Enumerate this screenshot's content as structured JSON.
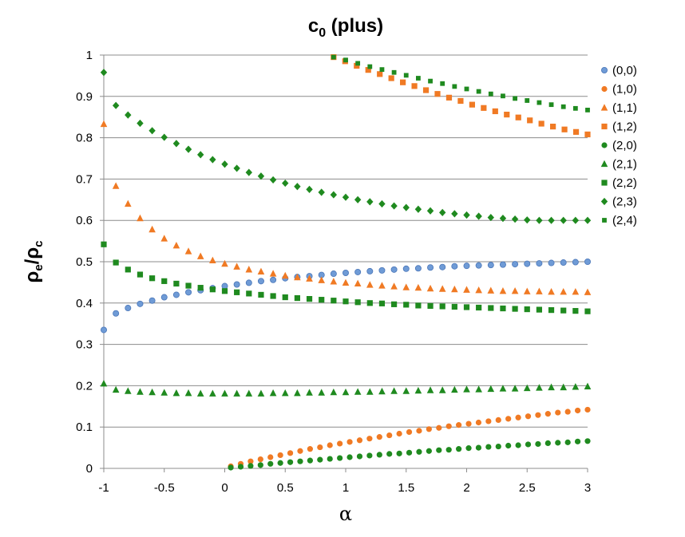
{
  "chart_data": {
    "type": "scatter",
    "title": "c",
    "title_sub": "0",
    "title_suffix": " (plus)",
    "xlabel": "α",
    "ylabel_main1": "ρ",
    "ylabel_sub1": "e",
    "ylabel_slash": "/ρ",
    "ylabel_sub2": "c",
    "xlim": [
      -1,
      3
    ],
    "ylim": [
      0,
      1
    ],
    "x_ticks": [
      -1,
      -0.5,
      0,
      0.5,
      1,
      1.5,
      2,
      2.5,
      3
    ],
    "x_tick_labels": [
      "-1",
      "-0.5",
      "0",
      "0.5",
      "1",
      "1.5",
      "2",
      "2.5",
      "3"
    ],
    "y_ticks": [
      0,
      0.1,
      0.2,
      0.3,
      0.4,
      0.5,
      0.6,
      0.7,
      0.8,
      0.9,
      1
    ],
    "y_tick_labels": [
      "0",
      "0.1",
      "0.2",
      "0.3",
      "0.4",
      "0.5",
      "0.6",
      "0.7",
      "0.8",
      "0.9",
      "1"
    ],
    "grid": "horizontal",
    "legend_position": "right",
    "colors": {
      "blue": "#6f9bd6",
      "blue_edge": "#4a76b8",
      "orange": "#f07a24",
      "green": "#1f8a1f"
    },
    "series": [
      {
        "name": "(0,0)",
        "color": "#6f9bd6",
        "marker": "circle",
        "x_start": -1,
        "x_end": 3,
        "values": [
          0.335,
          0.375,
          0.388,
          0.398,
          0.406,
          0.414,
          0.42,
          0.426,
          0.431,
          0.436,
          0.441,
          0.445,
          0.449,
          0.453,
          0.456,
          0.46,
          0.463,
          0.465,
          0.468,
          0.471,
          0.473,
          0.475,
          0.477,
          0.479,
          0.481,
          0.483,
          0.484,
          0.486,
          0.487,
          0.489,
          0.49,
          0.491,
          0.492,
          0.493,
          0.494,
          0.495,
          0.496,
          0.497,
          0.498,
          0.499,
          0.5
        ]
      },
      {
        "name": "(1,0)",
        "color": "#f07a24",
        "marker": "circle",
        "x_start": 0.05,
        "x_end": 3,
        "values": [
          0.005,
          0.011,
          0.017,
          0.022,
          0.027,
          0.032,
          0.037,
          0.042,
          0.047,
          0.051,
          0.056,
          0.06,
          0.064,
          0.068,
          0.072,
          0.076,
          0.08,
          0.084,
          0.088,
          0.091,
          0.095,
          0.098,
          0.102,
          0.105,
          0.108,
          0.111,
          0.114,
          0.117,
          0.12,
          0.123,
          0.126,
          0.129,
          0.132,
          0.135,
          0.137,
          0.14,
          0.142
        ]
      },
      {
        "name": "(1,1)",
        "color": "#f07a24",
        "marker": "triangle",
        "x_start": -1,
        "x_end": 3,
        "values": [
          0.833,
          0.683,
          0.64,
          0.605,
          0.578,
          0.556,
          0.539,
          0.525,
          0.513,
          0.503,
          0.495,
          0.488,
          0.481,
          0.476,
          0.471,
          0.466,
          0.462,
          0.459,
          0.455,
          0.452,
          0.449,
          0.447,
          0.444,
          0.442,
          0.44,
          0.438,
          0.437,
          0.435,
          0.434,
          0.433,
          0.432,
          0.431,
          0.43,
          0.429,
          0.429,
          0.428,
          0.428,
          0.427,
          0.427,
          0.427,
          0.426
        ]
      },
      {
        "name": "(1,2)",
        "color": "#f07a24",
        "marker": "square",
        "x_start": 0.9,
        "x_end": 3,
        "values": [
          0.995,
          0.985,
          0.974,
          0.964,
          0.954,
          0.944,
          0.934,
          0.925,
          0.915,
          0.906,
          0.897,
          0.889,
          0.88,
          0.872,
          0.864,
          0.856,
          0.849,
          0.842,
          0.834,
          0.827,
          0.82,
          0.814,
          0.808
        ]
      },
      {
        "name": "(2,0)",
        "color": "#1f8a1f",
        "marker": "circle",
        "x_start": 0.05,
        "x_end": 3,
        "values": [
          0.002,
          0.004,
          0.006,
          0.008,
          0.011,
          0.013,
          0.015,
          0.017,
          0.019,
          0.021,
          0.023,
          0.025,
          0.027,
          0.029,
          0.031,
          0.033,
          0.035,
          0.036,
          0.038,
          0.04,
          0.042,
          0.044,
          0.045,
          0.047,
          0.049,
          0.05,
          0.052,
          0.053,
          0.055,
          0.056,
          0.058,
          0.059,
          0.061,
          0.062,
          0.063,
          0.065,
          0.066
        ]
      },
      {
        "name": "(2,1)",
        "color": "#1f8a1f",
        "marker": "triangle",
        "x_start": -1,
        "x_end": 3,
        "values": [
          0.205,
          0.19,
          0.187,
          0.185,
          0.184,
          0.183,
          0.182,
          0.182,
          0.181,
          0.181,
          0.181,
          0.181,
          0.181,
          0.181,
          0.182,
          0.182,
          0.182,
          0.183,
          0.183,
          0.184,
          0.184,
          0.185,
          0.185,
          0.186,
          0.187,
          0.187,
          0.188,
          0.189,
          0.189,
          0.19,
          0.191,
          0.191,
          0.192,
          0.193,
          0.193,
          0.194,
          0.195,
          0.196,
          0.196,
          0.197,
          0.198
        ]
      },
      {
        "name": "(2,2)",
        "color": "#1f8a1f",
        "marker": "square",
        "x_start": -1,
        "x_end": 3,
        "values": [
          0.542,
          0.498,
          0.481,
          0.469,
          0.46,
          0.453,
          0.447,
          0.442,
          0.437,
          0.433,
          0.429,
          0.426,
          0.423,
          0.42,
          0.417,
          0.414,
          0.412,
          0.41,
          0.408,
          0.406,
          0.404,
          0.402,
          0.4,
          0.399,
          0.397,
          0.396,
          0.394,
          0.393,
          0.392,
          0.391,
          0.39,
          0.389,
          0.388,
          0.387,
          0.386,
          0.385,
          0.384,
          0.383,
          0.382,
          0.381,
          0.38
        ]
      },
      {
        "name": "(2,3)",
        "color": "#1f8a1f",
        "marker": "diamond",
        "x_start": -1,
        "x_end": 3,
        "values": [
          0.958,
          0.878,
          0.855,
          0.835,
          0.817,
          0.801,
          0.786,
          0.772,
          0.759,
          0.747,
          0.736,
          0.726,
          0.716,
          0.707,
          0.698,
          0.69,
          0.682,
          0.675,
          0.668,
          0.662,
          0.656,
          0.65,
          0.645,
          0.64,
          0.635,
          0.631,
          0.627,
          0.623,
          0.619,
          0.616,
          0.613,
          0.61,
          0.607,
          0.605,
          0.603,
          0.601,
          0.6,
          0.6,
          0.6,
          0.6,
          0.6
        ]
      },
      {
        "name": "(2,4)",
        "color": "#1f8a1f",
        "marker": "small-square",
        "x_start": 0.9,
        "x_end": 3,
        "values": [
          0.995,
          0.988,
          0.98,
          0.972,
          0.965,
          0.958,
          0.951,
          0.944,
          0.937,
          0.931,
          0.924,
          0.918,
          0.912,
          0.906,
          0.901,
          0.895,
          0.89,
          0.885,
          0.88,
          0.875,
          0.871,
          0.867
        ]
      }
    ]
  }
}
